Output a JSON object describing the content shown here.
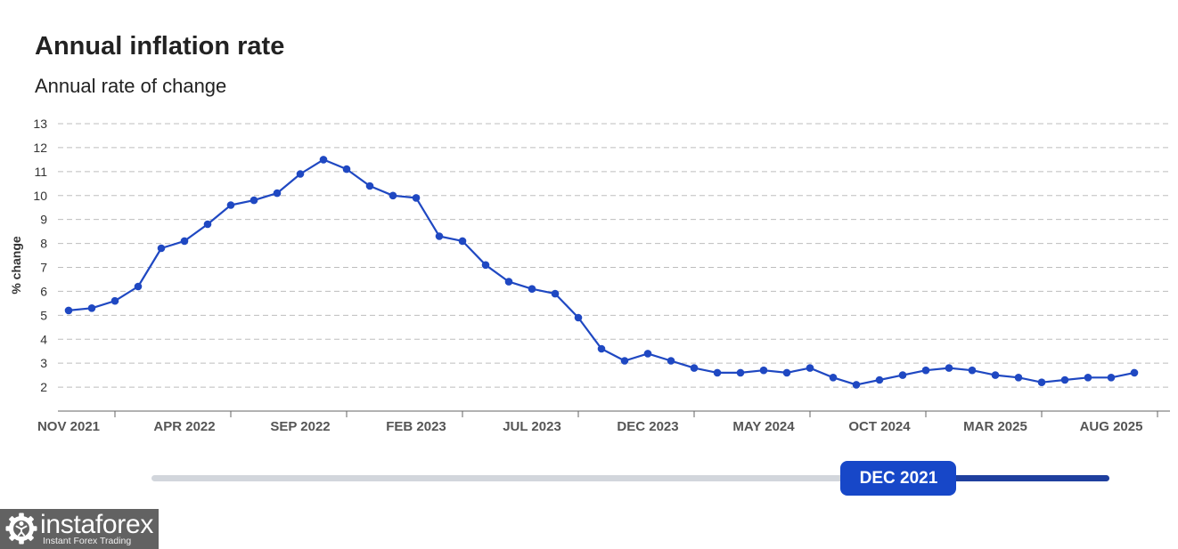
{
  "chart_data": {
    "type": "line",
    "title": "Annual inflation rate",
    "subtitle": "Annual rate of change",
    "xlabel": "",
    "ylabel": "% change",
    "ylim": [
      1,
      13
    ],
    "y_ticks": [
      2,
      3,
      4,
      5,
      6,
      7,
      8,
      9,
      10,
      11,
      12,
      13
    ],
    "grid": true,
    "label_interval": 5,
    "tick_labels": [
      "NOV 2021",
      "APR 2022",
      "SEP 2022",
      "FEB 2023",
      "JUL 2023",
      "DEC 2023",
      "MAY 2024",
      "OCT 2024",
      "MAR 2025",
      "AUG 2025"
    ],
    "series": [
      {
        "values": [
          5.2,
          5.3,
          5.6,
          6.2,
          7.8,
          8.1,
          8.8,
          9.6,
          9.8,
          10.1,
          10.9,
          11.5,
          11.1,
          10.4,
          10.0,
          9.9,
          8.3,
          8.1,
          7.1,
          6.4,
          6.1,
          5.9,
          4.9,
          3.6,
          3.1,
          3.4,
          3.1,
          2.8,
          2.6,
          2.6,
          2.7,
          2.6,
          2.8,
          2.4,
          2.1,
          2.3,
          2.5,
          2.7,
          2.8,
          2.7,
          2.5,
          2.4,
          2.2,
          2.3,
          2.4,
          2.4,
          2.6
        ]
      }
    ]
  },
  "slider": {
    "handle_label": "DEC 2021",
    "level_percent": 78
  },
  "logo": {
    "name": "instaforex",
    "tagline": "Instant Forex Trading",
    "icon": "gear-figure-icon"
  },
  "colors": {
    "series": "#1f48c2",
    "gridline": "#bdbdbd",
    "slider_track": "#d2d6dc",
    "slider_fill": "#1f3f9e",
    "slider_handle": "#1747c8",
    "logo_background": "#626262"
  }
}
